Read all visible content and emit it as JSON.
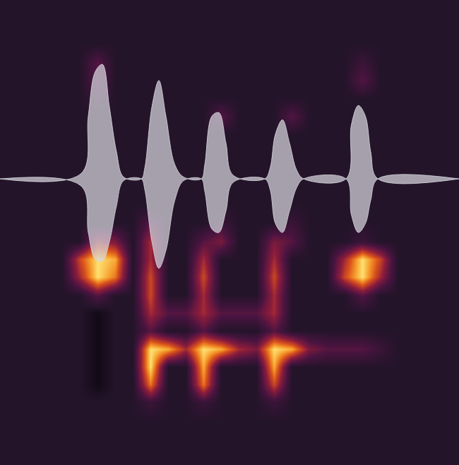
{
  "chart_data": {
    "type": "heatmap",
    "grid": false,
    "tick_labels": false,
    "xlim": [
      0,
      26
    ],
    "ylim": [
      0,
      26
    ],
    "zlim": [
      0,
      9
    ],
    "x": [
      0.5,
      1.5,
      2.5,
      3.5,
      4.5,
      5.5,
      6.5,
      7.5,
      8.5,
      9.5,
      10.5,
      11.5,
      12.5,
      13.5,
      14.5,
      15.5,
      16.5,
      17.5,
      18.5,
      19.5,
      20.5,
      21.5,
      22.5,
      23.5,
      24.5,
      25.5
    ],
    "y": [
      25.5,
      24.5,
      23.5,
      22.5,
      21.5,
      20.5,
      19.5,
      18.5,
      17.5,
      16.5,
      15.5,
      14.5,
      13.5,
      12.5,
      11.5,
      10.5,
      9.5,
      8.5,
      7.5,
      6.5,
      5.5,
      4.5,
      3.5,
      2.5,
      1.5,
      0.5
    ],
    "cells": [
      [
        1,
        1,
        1,
        1,
        1,
        1,
        1,
        1,
        1,
        1,
        1,
        1,
        1,
        1,
        1,
        1,
        1,
        1,
        1,
        1,
        1,
        1,
        1,
        1,
        1,
        1
      ],
      [
        1,
        1,
        1,
        1,
        1,
        1,
        1,
        1,
        1,
        1,
        1,
        1,
        1,
        1,
        1,
        1,
        1,
        1,
        1,
        1,
        1,
        1,
        1,
        1,
        1,
        1
      ],
      [
        1,
        1,
        1,
        1,
        1,
        1,
        1,
        1,
        1,
        1,
        1,
        1,
        1,
        1,
        1,
        1,
        1,
        1,
        1,
        1,
        1,
        1,
        1,
        1,
        1,
        1
      ],
      [
        1,
        1,
        1,
        1,
        1,
        3,
        1,
        1,
        1,
        1,
        1,
        1,
        1,
        1,
        1,
        1,
        1,
        1,
        1,
        1,
        2,
        1,
        1,
        1,
        1,
        1
      ],
      [
        1,
        1,
        1,
        1,
        1,
        3,
        1,
        1,
        1,
        1,
        1,
        1,
        1,
        1,
        1,
        1,
        1,
        1,
        1,
        1,
        3,
        1,
        1,
        1,
        1,
        1
      ],
      [
        1,
        1,
        1,
        1,
        1,
        2,
        1,
        1,
        1,
        1,
        1,
        1,
        1,
        1,
        1,
        1,
        1,
        1,
        1,
        1,
        1,
        1,
        1,
        1,
        1,
        1
      ],
      [
        1,
        1,
        1,
        1,
        1,
        1,
        1,
        1,
        1,
        1,
        1,
        1,
        3,
        1,
        1,
        1,
        3,
        1,
        1,
        1,
        1,
        1,
        1,
        1,
        1,
        1
      ],
      [
        1,
        1,
        1,
        1,
        1,
        1,
        1,
        1,
        1,
        1,
        1,
        1,
        1,
        1,
        1,
        1,
        1,
        1,
        1,
        1,
        1,
        1,
        1,
        1,
        1,
        1
      ],
      [
        1,
        1,
        1,
        1,
        1,
        1,
        1,
        1,
        1,
        1,
        1,
        1,
        1,
        1,
        1,
        1,
        1,
        1,
        1,
        1,
        1,
        1,
        1,
        1,
        1,
        1
      ],
      [
        1,
        1,
        1,
        1,
        1,
        1,
        1,
        1,
        1,
        1,
        1,
        1,
        1,
        1,
        1,
        1,
        1,
        1,
        1,
        1,
        1,
        1,
        1,
        1,
        1,
        1
      ],
      [
        1,
        1,
        1,
        1,
        1,
        1,
        1,
        1,
        1,
        1,
        1,
        1,
        1,
        1,
        1,
        1,
        1,
        1,
        1,
        1,
        1,
        1,
        1,
        1,
        1,
        1
      ],
      [
        1,
        1,
        1,
        1,
        1,
        1,
        1,
        1,
        1,
        1,
        1,
        1,
        1,
        1,
        1,
        1,
        1,
        1,
        1,
        1,
        1,
        1,
        1,
        1,
        1,
        1
      ],
      [
        1,
        1,
        1,
        1,
        1,
        1,
        1,
        1,
        3,
        1,
        1,
        1,
        2,
        1,
        1,
        1,
        2,
        1,
        1,
        1,
        1,
        1,
        1,
        1,
        1,
        1
      ],
      [
        1,
        1,
        1,
        1,
        1,
        5,
        4,
        1,
        5,
        1,
        1,
        3,
        4,
        1,
        1,
        4,
        3,
        1,
        1,
        1,
        2,
        1,
        1,
        1,
        1,
        1
      ],
      [
        1,
        1,
        1,
        1,
        6,
        9,
        8,
        1,
        5,
        1,
        1,
        5,
        1,
        1,
        1,
        5,
        1,
        1,
        1,
        5,
        9,
        6,
        1,
        1,
        1,
        1
      ],
      [
        1,
        1,
        1,
        1,
        5,
        9,
        7,
        1,
        6,
        1,
        1,
        6,
        1,
        1,
        1,
        6,
        1,
        1,
        1,
        6,
        9,
        5,
        1,
        1,
        1,
        1
      ],
      [
        1,
        1,
        1,
        1,
        1,
        3,
        1,
        1,
        6,
        1,
        1,
        5,
        1,
        1,
        1,
        5,
        1,
        1,
        1,
        1,
        3,
        1,
        1,
        1,
        1,
        1
      ],
      [
        1,
        1,
        1,
        1,
        1,
        0,
        1,
        1,
        5,
        3,
        3,
        5,
        3,
        3,
        3,
        5,
        1,
        1,
        1,
        1,
        1,
        1,
        1,
        1,
        1,
        1
      ],
      [
        1,
        1,
        1,
        1,
        1,
        0,
        1,
        1,
        3,
        1,
        1,
        3,
        1,
        1,
        1,
        3,
        1,
        1,
        1,
        1,
        1,
        1,
        1,
        1,
        1,
        1
      ],
      [
        1,
        1,
        1,
        1,
        1,
        0,
        1,
        1,
        9,
        8,
        5,
        9,
        8,
        5,
        4,
        9,
        8,
        4,
        3,
        3,
        3,
        2,
        1,
        1,
        1,
        1
      ],
      [
        1,
        1,
        1,
        1,
        1,
        0,
        1,
        1,
        9,
        1,
        1,
        8,
        1,
        1,
        1,
        8,
        1,
        1,
        1,
        1,
        1,
        1,
        1,
        1,
        1,
        1
      ],
      [
        1,
        1,
        1,
        1,
        1,
        0,
        1,
        1,
        7,
        1,
        1,
        7,
        1,
        1,
        1,
        6,
        1,
        1,
        1,
        1,
        1,
        1,
        1,
        1,
        1,
        1
      ],
      [
        1,
        1,
        1,
        1,
        1,
        1,
        1,
        1,
        2,
        1,
        1,
        2,
        1,
        1,
        1,
        2,
        1,
        1,
        1,
        1,
        1,
        1,
        1,
        1,
        1,
        1
      ],
      [
        1,
        1,
        1,
        1,
        1,
        1,
        1,
        1,
        1,
        1,
        1,
        1,
        1,
        1,
        1,
        1,
        1,
        1,
        1,
        1,
        1,
        1,
        1,
        1,
        1,
        1
      ],
      [
        1,
        1,
        1,
        1,
        1,
        1,
        1,
        1,
        1,
        1,
        1,
        1,
        1,
        1,
        1,
        1,
        1,
        1,
        1,
        1,
        1,
        1,
        1,
        1,
        1,
        1
      ],
      [
        1,
        1,
        1,
        1,
        1,
        1,
        1,
        1,
        1,
        1,
        1,
        1,
        1,
        1,
        1,
        1,
        1,
        1,
        1,
        1,
        1,
        1,
        1,
        1,
        1,
        1
      ]
    ],
    "waveform": {
      "x": [
        0,
        4.6,
        5.0,
        5.4,
        5.8,
        6.2,
        6.6,
        7.0,
        8.0,
        8.2,
        8.6,
        9.0,
        9.4,
        9.9,
        10.4,
        11.4,
        11.6,
        12.0,
        12.4,
        12.8,
        13.2,
        15.0,
        15.3,
        15.6,
        16.0,
        16.4,
        16.8,
        17.2,
        19.6,
        19.9,
        20.3,
        20.7,
        21.0,
        21.4,
        26
      ],
      "upper": [
        16,
        16.3,
        19.5,
        22,
        22.4,
        20,
        17.5,
        16.1,
        16,
        16.6,
        20,
        21.5,
        19.5,
        16.8,
        16.1,
        16,
        16.8,
        19.5,
        19.7,
        18,
        16.2,
        16,
        16.6,
        18.5,
        19.3,
        18,
        16.5,
        16,
        16,
        19,
        20.1,
        19.5,
        17.5,
        16,
        16
      ],
      "lower": [
        16,
        15.6,
        13,
        11.5,
        11.4,
        12.5,
        14.5,
        15.9,
        16,
        15.4,
        12.5,
        11,
        12,
        14.8,
        15.9,
        16,
        15.3,
        13.2,
        13,
        14.2,
        15.8,
        16,
        15.4,
        13.5,
        13,
        14.2,
        15.5,
        16,
        16,
        14,
        13,
        13.5,
        14.8,
        16,
        16
      ]
    }
  }
}
